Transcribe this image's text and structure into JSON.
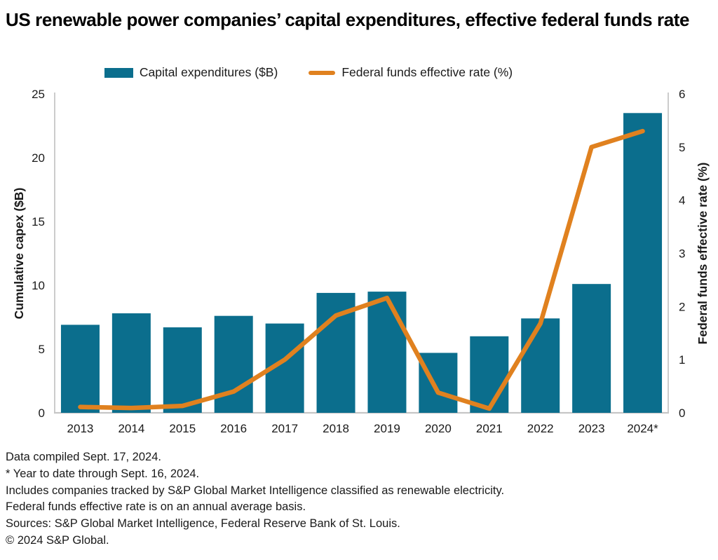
{
  "title": "US renewable power companies’ capital expenditures, effective federal funds rate",
  "legend": {
    "items": [
      {
        "label": "Capital expenditures ($B)",
        "marker": "bar-swatch",
        "color": "#0b6e8d"
      },
      {
        "label": "Federal funds effective rate (%)",
        "marker": "line-swatch",
        "color": "#e0811f"
      }
    ]
  },
  "chart_data": {
    "type": "combo-bar-line",
    "title": "US renewable power companies’ capital expenditures, effective federal funds rate",
    "categories": [
      "2013",
      "2014",
      "2015",
      "2016",
      "2017",
      "2018",
      "2019",
      "2020",
      "2021",
      "2022",
      "2023",
      "2024*"
    ],
    "series": [
      {
        "name": "Capital expenditures ($B)",
        "type": "bar",
        "axis": "left",
        "color": "#0b6e8d",
        "values": [
          6.9,
          7.8,
          6.7,
          7.6,
          7.0,
          9.4,
          9.5,
          4.7,
          6.0,
          7.4,
          10.1,
          23.5
        ]
      },
      {
        "name": "Federal funds effective rate (%)",
        "type": "line",
        "axis": "right",
        "color": "#e0811f",
        "values": [
          0.11,
          0.09,
          0.13,
          0.4,
          1.0,
          1.83,
          2.16,
          0.38,
          0.08,
          1.68,
          5.0,
          5.3
        ]
      }
    ],
    "left_axis": {
      "label": "Cumulative capex ($B)",
      "min": 0,
      "max": 25,
      "ticks": [
        0,
        5,
        10,
        15,
        20,
        25
      ]
    },
    "right_axis": {
      "label": "Federal funds effective rate (%)",
      "min": 0,
      "max": 6,
      "ticks": [
        0,
        1,
        2,
        3,
        4,
        5,
        6
      ]
    },
    "grid": false,
    "legend_position": "top",
    "axis_line_color": "#c6c6c6"
  },
  "footnotes": [
    "Data compiled Sept. 17, 2024.",
    "* Year to date through Sept. 16, 2024.",
    "Includes companies tracked by S&P Global Market Intelligence classified as renewable electricity.",
    "Federal funds effective rate is on an annual average basis.",
    "Sources: S&P Global Market Intelligence, Federal Reserve Bank of St. Louis.",
    "© 2024 S&P Global."
  ]
}
